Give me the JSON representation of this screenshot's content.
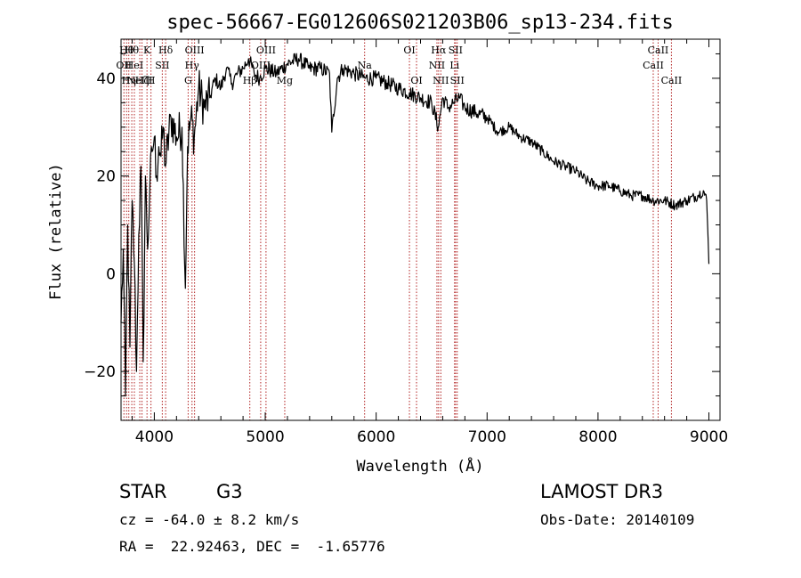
{
  "chart_data": {
    "type": "line",
    "title": "spec-56667-EG012606S021203B06_sp13-234.fits",
    "xlabel": "Wavelength (Å)",
    "ylabel": "Flux (relative)",
    "xlim": [
      3700,
      9100
    ],
    "ylim": [
      -30,
      48
    ],
    "x_ticks": [
      4000,
      5000,
      6000,
      7000,
      8000,
      9000
    ],
    "y_ticks": [
      -20,
      0,
      20,
      40
    ],
    "series": [
      {
        "name": "spectrum",
        "x": [
          3700,
          3720,
          3740,
          3760,
          3780,
          3800,
          3820,
          3840,
          3860,
          3880,
          3900,
          3920,
          3940,
          3960,
          3980,
          4000,
          4020,
          4040,
          4060,
          4080,
          4100,
          4150,
          4200,
          4250,
          4280,
          4300,
          4330,
          4360,
          4400,
          4450,
          4500,
          4550,
          4600,
          4650,
          4700,
          4750,
          4800,
          4850,
          4900,
          4950,
          5000,
          5100,
          5200,
          5300,
          5400,
          5500,
          5580,
          5600,
          5650,
          5700,
          5800,
          5900,
          6000,
          6100,
          6200,
          6300,
          6400,
          6500,
          6560,
          6600,
          6650,
          6700,
          6750,
          6800,
          6900,
          7000,
          7100,
          7200,
          7300,
          7400,
          7500,
          7600,
          7700,
          7800,
          7900,
          8000,
          8100,
          8200,
          8300,
          8400,
          8500,
          8600,
          8700,
          8800,
          8900,
          8950,
          8980,
          9000
        ],
        "y": [
          -10,
          5,
          -25,
          10,
          -15,
          15,
          2,
          -20,
          8,
          22,
          -18,
          20,
          5,
          18,
          25,
          28,
          20,
          26,
          24,
          30,
          22,
          32,
          28,
          30,
          -3,
          26,
          32,
          28,
          38,
          34,
          36,
          40,
          38,
          42,
          39,
          41,
          42,
          44,
          41,
          40,
          42,
          41,
          43,
          44,
          42,
          42,
          41,
          29,
          40,
          42,
          41,
          40,
          40,
          39,
          38,
          37,
          36,
          35,
          30,
          36,
          34,
          35,
          36,
          34,
          33,
          32,
          29,
          30,
          28,
          27,
          25,
          23,
          22,
          21,
          19,
          18,
          18,
          17,
          16,
          16,
          15,
          15,
          14,
          15,
          16,
          17,
          15,
          2
        ]
      }
    ],
    "lines": [
      {
        "w": 3726,
        "label": "OII",
        "row": 1
      },
      {
        "w": 3750,
        "label": "Hθ",
        "row": 0
      },
      {
        "w": 3770,
        "label": "Hη",
        "row": 2
      },
      {
        "w": 3797,
        "label": "Hθ",
        "row": 0
      },
      {
        "w": 3820,
        "label": "HeI",
        "row": 1
      },
      {
        "w": 3869,
        "label": "NeIII",
        "row": 2
      },
      {
        "w": 3889,
        "label": "Hζ",
        "row": 2
      },
      {
        "w": 3934,
        "label": "K",
        "row": 0
      },
      {
        "w": 3970,
        "label": "H",
        "row": 2
      },
      {
        "w": 4072,
        "label": "SII",
        "row": 1
      },
      {
        "w": 4102,
        "label": "Hδ",
        "row": 0
      },
      {
        "w": 4305,
        "label": "G",
        "row": 2
      },
      {
        "w": 4340,
        "label": "Hγ",
        "row": 1
      },
      {
        "w": 4363,
        "label": "OIII",
        "row": 0
      },
      {
        "w": 4861,
        "label": "Hβ",
        "row": 2
      },
      {
        "w": 4959,
        "label": "OIII",
        "row": 1
      },
      {
        "w": 5007,
        "label": "OIII",
        "row": 0
      },
      {
        "w": 5176,
        "label": "Mg",
        "row": 2
      },
      {
        "w": 5896,
        "label": "Na",
        "row": 1
      },
      {
        "w": 6300,
        "label": "OI",
        "row": 0
      },
      {
        "w": 6364,
        "label": "OI",
        "row": 2
      },
      {
        "w": 6548,
        "label": "NII",
        "row": 1
      },
      {
        "w": 6563,
        "label": "Hα",
        "row": 0
      },
      {
        "w": 6583,
        "label": "NII",
        "row": 2
      },
      {
        "w": 6707,
        "label": "Li",
        "row": 1
      },
      {
        "w": 6716,
        "label": "SII",
        "row": 0
      },
      {
        "w": 6731,
        "label": "SII",
        "row": 2
      },
      {
        "w": 8498,
        "label": "CaII",
        "row": 1
      },
      {
        "w": 8542,
        "label": "CaII",
        "row": 0
      },
      {
        "w": 8662,
        "label": "CaII",
        "row": 2
      }
    ]
  },
  "info": {
    "class": "STAR",
    "subclass": "G3",
    "survey": "LAMOST DR3",
    "cz": "cz = -64.0 ± 8.2 km/s",
    "obs_date": "Obs-Date: 20140109",
    "coords": "RA =  22.92463, DEC =  -1.65776"
  },
  "colors": {
    "line_marker": "#b22222",
    "spectrum": "#000000"
  }
}
